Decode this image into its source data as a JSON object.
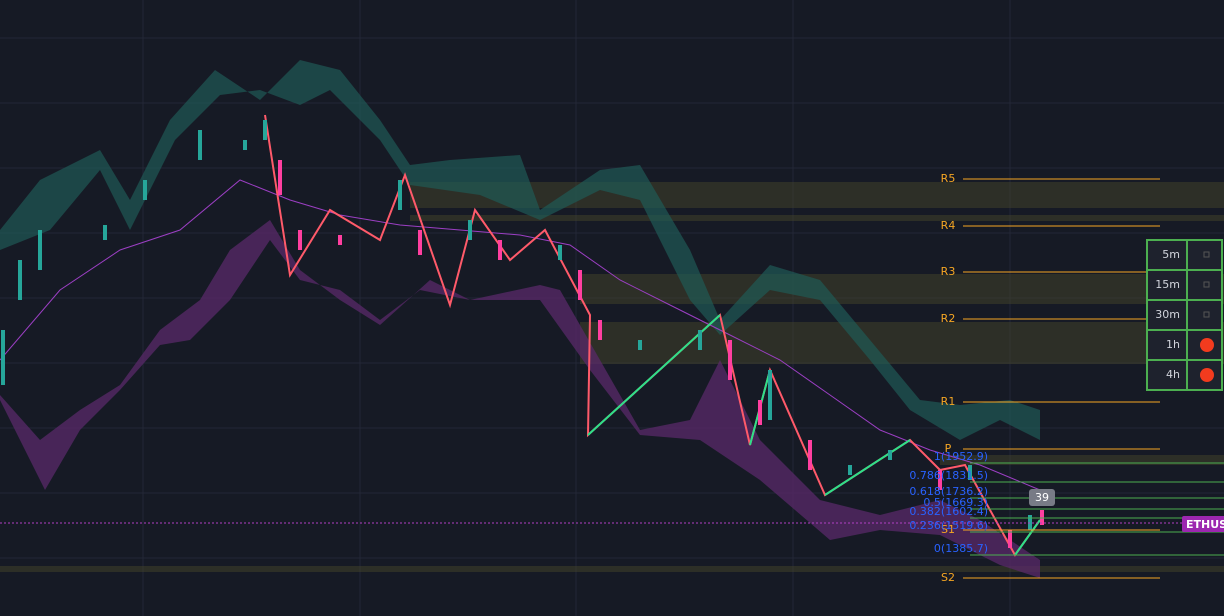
{
  "pivots": [
    {
      "label": "R5"
    },
    {
      "label": "R4"
    },
    {
      "label": "R3"
    },
    {
      "label": "R2"
    },
    {
      "label": "R1"
    },
    {
      "label": "P"
    },
    {
      "label": "S1"
    },
    {
      "label": "S2"
    }
  ],
  "fib_levels": [
    {
      "label": "1(1952.9)"
    },
    {
      "label": "0.786(1831.5)"
    },
    {
      "label": "0.618(1736.2)"
    },
    {
      "label": "0.5(1669.3)"
    },
    {
      "label": "0.382(1602.4)"
    },
    {
      "label": "0.236(1519.6)"
    },
    {
      "label": "0(1385.7)"
    }
  ],
  "badge": "39",
  "symbol_tag": "ETHUSD",
  "timeframes": [
    {
      "label": "5m",
      "active": false
    },
    {
      "label": "15m",
      "active": false
    },
    {
      "label": "30m",
      "active": false
    },
    {
      "label": "1h",
      "active": true
    },
    {
      "label": "4h",
      "active": true
    }
  ]
}
